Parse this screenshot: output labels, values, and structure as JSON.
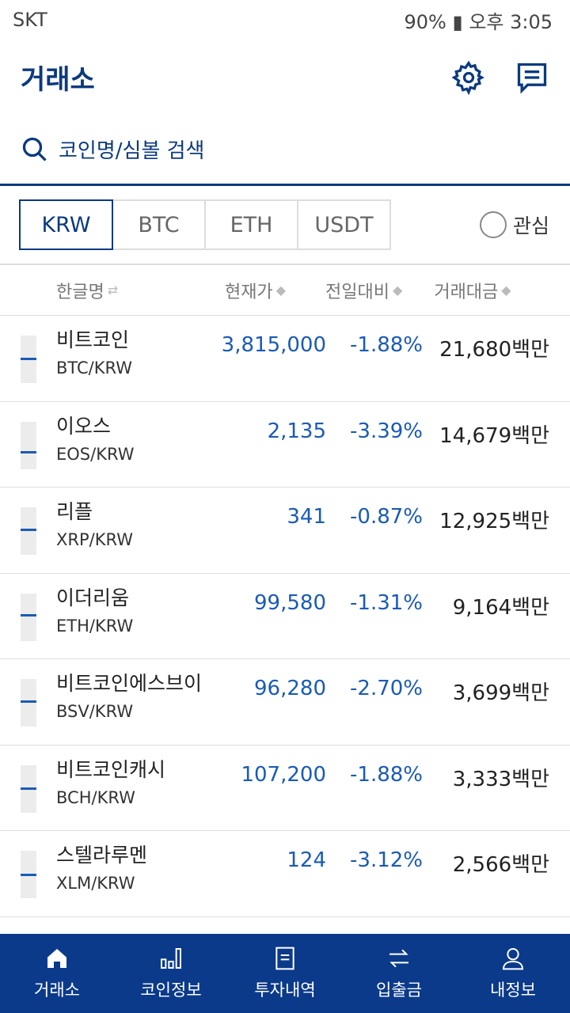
{
  "status": {
    "carrier": "SKT",
    "battery": "90%",
    "time": "오후 3:05"
  },
  "header": {
    "title": "거래소"
  },
  "search": {
    "placeholder": "코인명/심볼 검색"
  },
  "tabs": [
    "KRW",
    "BTC",
    "ETH",
    "USDT"
  ],
  "active_tab": "KRW",
  "favorite_label": "관심",
  "columns": {
    "name": "한글명",
    "price": "현재가",
    "change": "전일대비",
    "volume": "거래대금"
  },
  "accent_color": "#1a5bb5",
  "rows": [
    {
      "name": "비트코인",
      "symbol": "BTC/KRW",
      "price": "3,815,000",
      "change": "-1.88%",
      "volume": "21,680백만"
    },
    {
      "name": "이오스",
      "symbol": "EOS/KRW",
      "price": "2,135",
      "change": "-3.39%",
      "volume": "14,679백만"
    },
    {
      "name": "리플",
      "symbol": "XRP/KRW",
      "price": "341",
      "change": "-0.87%",
      "volume": "12,925백만"
    },
    {
      "name": "이더리움",
      "symbol": "ETH/KRW",
      "price": "99,580",
      "change": "-1.31%",
      "volume": "9,164백만"
    },
    {
      "name": "비트코인에스브이",
      "symbol": "BSV/KRW",
      "price": "96,280",
      "change": "-2.70%",
      "volume": "3,699백만"
    },
    {
      "name": "비트코인캐시",
      "symbol": "BCH/KRW",
      "price": "107,200",
      "change": "-1.88%",
      "volume": "3,333백만"
    },
    {
      "name": "스텔라루멘",
      "symbol": "XLM/KRW",
      "price": "124",
      "change": "-3.12%",
      "volume": "2,566백만"
    }
  ],
  "nav": [
    "거래소",
    "코인정보",
    "투자내역",
    "입출금",
    "내정보"
  ]
}
